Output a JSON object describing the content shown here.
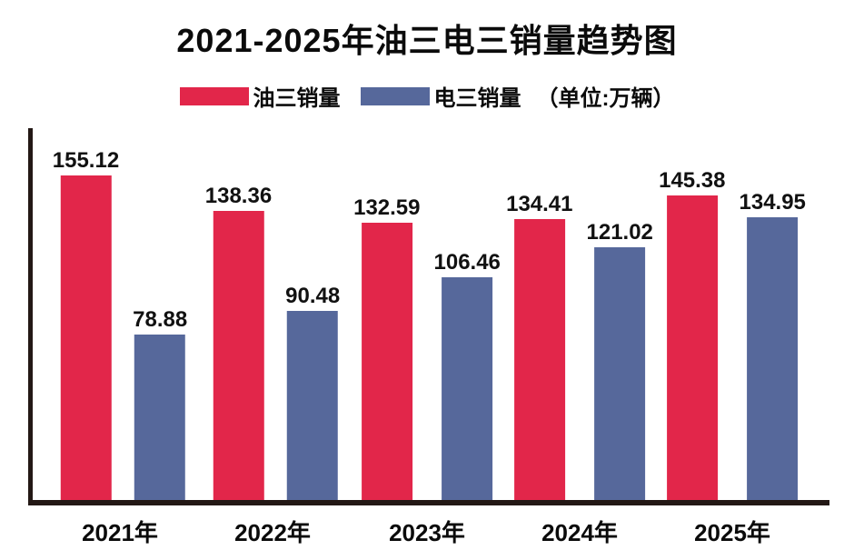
{
  "title": "2021-2025年油三电三销量趋势图",
  "legend": {
    "series1_label": "油三销量",
    "series2_label": "电三销量",
    "unit_note": "（单位:万辆）"
  },
  "colors": {
    "series1": "#E2264A",
    "series2": "#56689B",
    "axis": "#231815",
    "text": "#111111",
    "background": "#FFFFFF"
  },
  "chart_data": {
    "type": "bar",
    "title": "2021-2025年油三电三销量趋势图",
    "categories": [
      "2021年",
      "2022年",
      "2023年",
      "2024年",
      "2025年"
    ],
    "series": [
      {
        "name": "油三销量",
        "color": "#E2264A",
        "values": [
          155.12,
          138.36,
          132.59,
          134.41,
          145.38
        ]
      },
      {
        "name": "电三销量",
        "color": "#56689B",
        "values": [
          78.88,
          90.48,
          106.46,
          121.02,
          134.95
        ]
      }
    ],
    "unit": "万辆",
    "xlabel": "",
    "ylabel": "",
    "ylim": [
      0,
      176
    ],
    "grid": false,
    "legend_position": "top",
    "value_labels": true
  }
}
